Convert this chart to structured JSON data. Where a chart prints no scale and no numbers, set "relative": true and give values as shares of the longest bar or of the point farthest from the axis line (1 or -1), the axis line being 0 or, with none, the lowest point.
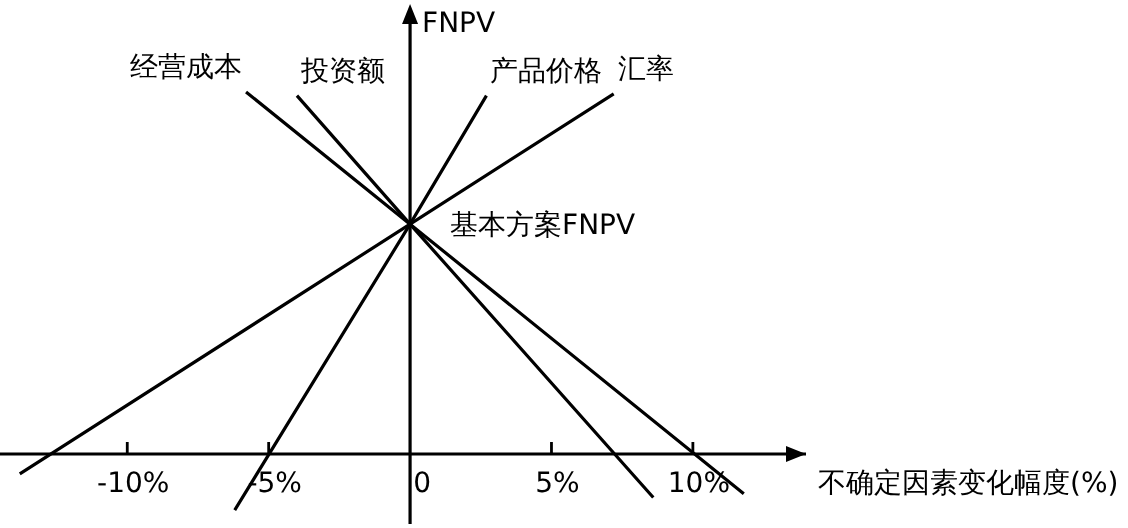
{
  "chart_data": {
    "type": "line",
    "relative": true,
    "xlabel": "不确定因素变化幅度(%)",
    "ylabel": "FNPV",
    "xlim": [
      -14.5,
      14
    ],
    "xticks": [
      {
        "value": -10,
        "label": "-10%"
      },
      {
        "value": -5,
        "label": "-5%"
      },
      {
        "value": 0,
        "label": "0"
      },
      {
        "value": 5,
        "label": "5%"
      },
      {
        "value": 10,
        "label": "10%"
      }
    ],
    "series": [
      {
        "name": "经营成本",
        "color": "#000000",
        "x": [
          -5.8,
          0,
          11.8
        ],
        "values": [
          1.0,
          0.635,
          -0.11
        ]
      },
      {
        "name": "投资额",
        "color": "#000000",
        "x": [
          -4.0,
          0,
          8.6
        ],
        "values": [
          0.99,
          0.635,
          -0.12
        ]
      },
      {
        "name": "产品价格",
        "color": "#000000",
        "x": [
          -6.2,
          0,
          2.7
        ],
        "values": [
          -0.155,
          0.635,
          0.99
        ]
      },
      {
        "name": "汇率",
        "color": "#000000",
        "x": [
          -13.8,
          0,
          7.2
        ],
        "values": [
          -0.055,
          0.635,
          0.995
        ]
      }
    ],
    "annotations": [
      {
        "text": "基本方案FNPV",
        "x": 0,
        "y": 0.635
      }
    ],
    "marker": "none",
    "line_style": "solid"
  }
}
